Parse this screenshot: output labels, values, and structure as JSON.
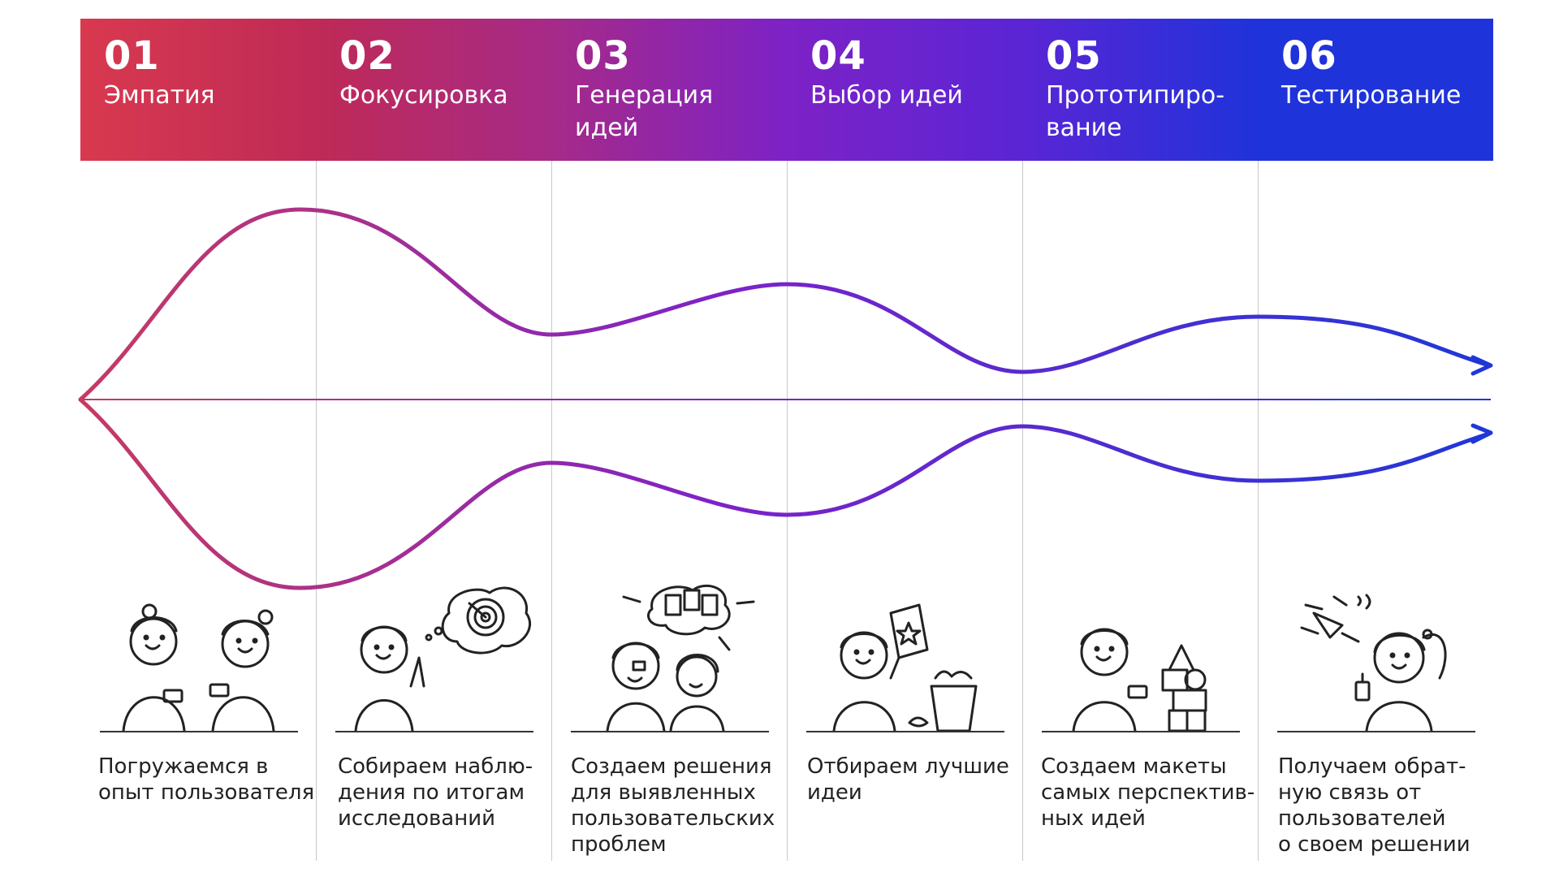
{
  "colors": {
    "gradient_start": "#D8384F",
    "gradient_mid": "#7E22C8",
    "gradient_end": "#1E35D6",
    "stroke_start": "#C73A62",
    "stroke_end": "#1F37D8",
    "text": "#222222",
    "divider": "#C9C9C9"
  },
  "steps": [
    {
      "number": "01",
      "name": "Эмпатия",
      "color": "#D9394F",
      "icon": "empathy-icon",
      "description": "Погружаемся в\nопыт пользователя"
    },
    {
      "number": "02",
      "name": "Фокусировка",
      "color": "#BF2A56",
      "icon": "focus-target-icon",
      "description": "Собираем наблю-\nдения по итогам\nисследований"
    },
    {
      "number": "03",
      "name": "Генерация\nидей",
      "color": "#A62A88",
      "icon": "idea-generation-icon",
      "description": "Создаем решения\nдля выявленных\nпользовательских\nпроблем"
    },
    {
      "number": "04",
      "name": "Выбор идей",
      "color": "#7D22C6",
      "icon": "select-ideas-icon",
      "description": "Отбираем лучшие\nидеи"
    },
    {
      "number": "05",
      "name": "Прототипиро-\nвание",
      "color": "#5A25D5",
      "icon": "prototype-blocks-icon",
      "description": "Создаем макеты\nсамых перспектив-\nных идей"
    },
    {
      "number": "06",
      "name": "Тестирование",
      "color": "#1F33DA",
      "icon": "testing-drone-icon",
      "description": "Получаем обрат-\nную связь от\nпользователей\nо своем решении"
    }
  ]
}
